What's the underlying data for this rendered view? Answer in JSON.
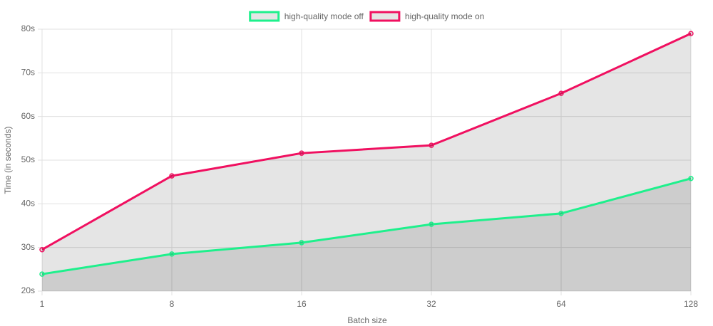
{
  "chart_data": {
    "type": "line",
    "categories": [
      "1",
      "8",
      "16",
      "32",
      "64",
      "128"
    ],
    "series": [
      {
        "name": "high-quality mode off",
        "color": "#1ef08c",
        "values": [
          23.9,
          28.5,
          31.1,
          35.3,
          37.8,
          45.8
        ]
      },
      {
        "name": "high-quality mode on",
        "color": "#f01060",
        "values": [
          29.5,
          46.4,
          51.6,
          53.4,
          65.3,
          79
        ]
      }
    ],
    "area_fill": "rgba(0,0,0,0.1)",
    "x_label": "Batch size",
    "y_label": "Time (in seconds)",
    "ylim": [
      20,
      80
    ],
    "yticks": [
      {
        "value": 20,
        "label": "20s"
      },
      {
        "value": 30,
        "label": "30s"
      },
      {
        "value": 40,
        "label": "40s"
      },
      {
        "value": 50,
        "label": "50s"
      },
      {
        "value": 60,
        "label": "60s"
      },
      {
        "value": 70,
        "label": "70s"
      },
      {
        "value": 80,
        "label": "80s"
      }
    ],
    "grid": true,
    "legend": "top"
  }
}
